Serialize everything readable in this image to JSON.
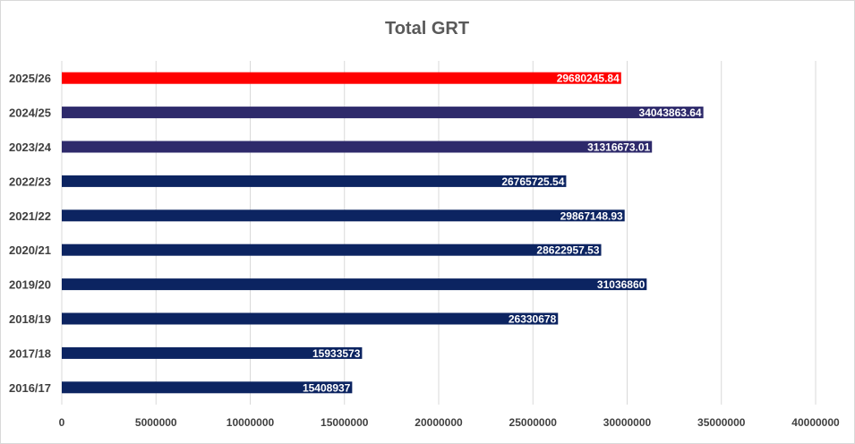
{
  "chart_data": {
    "type": "bar",
    "orientation": "horizontal",
    "title": "Total GRT",
    "xlabel": "",
    "ylabel": "",
    "xlim": [
      0,
      40000000
    ],
    "x_ticks": [
      "0",
      "5000000",
      "10000000",
      "15000000",
      "20000000",
      "25000000",
      "30000000",
      "35000000",
      "40000000"
    ],
    "grid": "vertical",
    "legend": "none",
    "categories": [
      "2025/26",
      "2024/25",
      "2023/24",
      "2022/23",
      "2021/22",
      "2020/21",
      "2019/20",
      "2018/19",
      "2017/18",
      "2016/17"
    ],
    "values": [
      29680245.84,
      34043863.64,
      31316673.01,
      26765725.54,
      29867148.93,
      28622957.53,
      31036860,
      26330678,
      15933573,
      15408937
    ],
    "data_labels": [
      "29680245.84",
      "34043863.64",
      "31316673.01",
      "26765725.54",
      "29867148.93",
      "28622957.53",
      "31036860",
      "26330678",
      "15933573",
      "15408937"
    ],
    "bar_colors": [
      "#ff0000",
      "#2e2a6b",
      "#2e2a6b",
      "#0c2461",
      "#0c2461",
      "#0c2461",
      "#0c2461",
      "#0c2461",
      "#0c2461",
      "#0c2461"
    ]
  }
}
